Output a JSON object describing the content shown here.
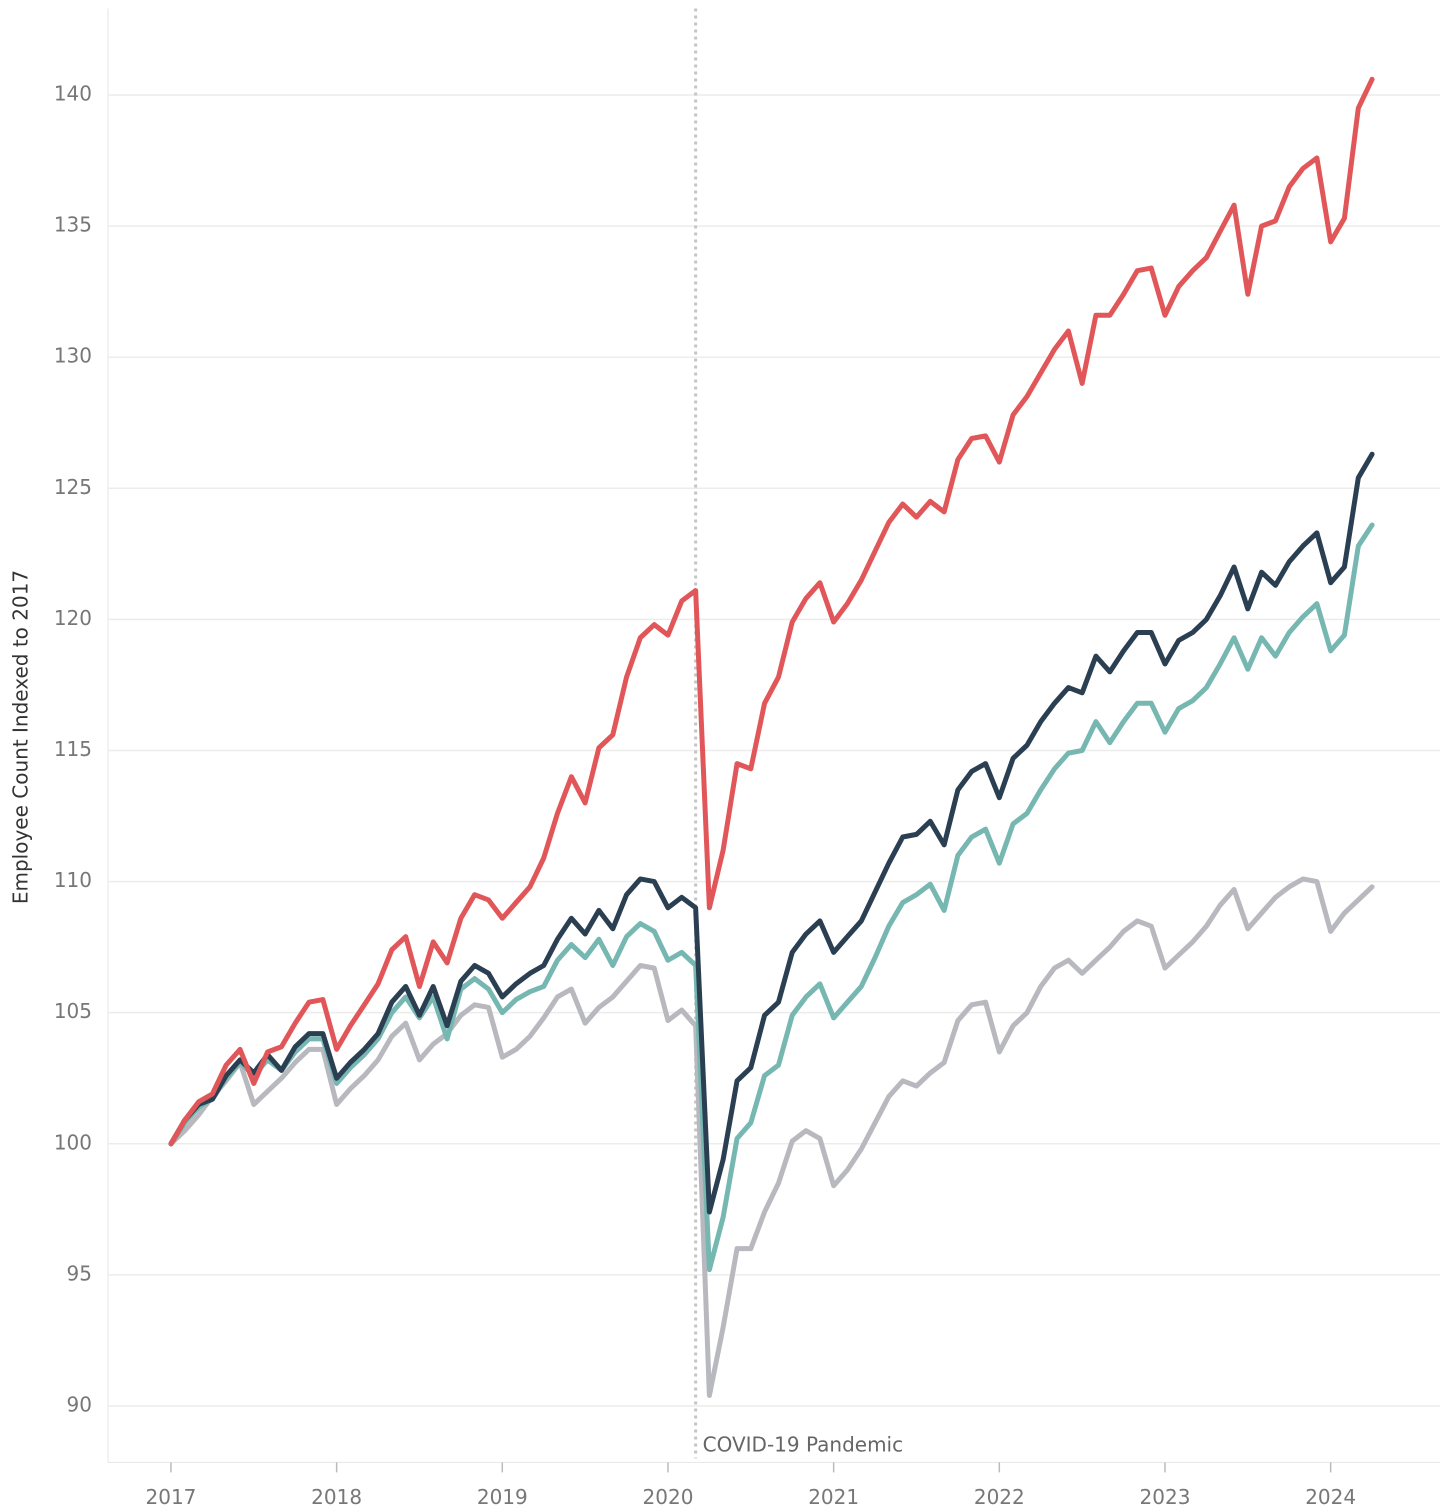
{
  "chart_data": {
    "type": "line",
    "ylabel": "Employee Count Indexed to 2017",
    "annotation": {
      "text": "COVID-19 Pandemic",
      "x": 2020.167
    },
    "xlim": [
      2016.62,
      2024.66
    ],
    "xticks": [
      2017,
      2018,
      2019,
      2020,
      2021,
      2022,
      2023,
      2024
    ],
    "ylim": [
      88,
      143.3
    ],
    "yticks": [
      90,
      95,
      100,
      105,
      110,
      115,
      120,
      125,
      130,
      135,
      140
    ],
    "grid": true,
    "x": [
      2017,
      2017.083,
      2017.167,
      2017.25,
      2017.333,
      2017.417,
      2017.5,
      2017.583,
      2017.667,
      2017.75,
      2017.833,
      2017.917,
      2018,
      2018.083,
      2018.167,
      2018.25,
      2018.333,
      2018.417,
      2018.5,
      2018.583,
      2018.667,
      2018.75,
      2018.833,
      2018.917,
      2019,
      2019.083,
      2019.167,
      2019.25,
      2019.333,
      2019.417,
      2019.5,
      2019.583,
      2019.667,
      2019.75,
      2019.833,
      2019.917,
      2020,
      2020.083,
      2020.167,
      2020.25,
      2020.333,
      2020.417,
      2020.5,
      2020.583,
      2020.667,
      2020.75,
      2020.833,
      2020.917,
      2021,
      2021.083,
      2021.167,
      2021.25,
      2021.333,
      2021.417,
      2021.5,
      2021.583,
      2021.667,
      2021.75,
      2021.833,
      2021.917,
      2022,
      2022.083,
      2022.167,
      2022.25,
      2022.333,
      2022.417,
      2022.5,
      2022.583,
      2022.667,
      2022.75,
      2022.833,
      2022.917,
      2023,
      2023.083,
      2023.167,
      2023.25,
      2023.333,
      2023.417,
      2023.5,
      2023.583,
      2023.667,
      2023.75,
      2023.833,
      2023.917,
      2024,
      2024.083,
      2024.167,
      2024.25
    ],
    "series": [
      {
        "color": "#b8b8bf",
        "values": [
          100,
          100.5,
          101.1,
          101.8,
          102.4,
          103.1,
          101.5,
          102.0,
          102.5,
          103.1,
          103.6,
          103.6,
          101.5,
          102.1,
          102.6,
          103.2,
          104.1,
          104.6,
          103.2,
          103.8,
          104.2,
          104.9,
          105.3,
          105.2,
          103.3,
          103.6,
          104.1,
          104.8,
          105.6,
          105.9,
          104.6,
          105.2,
          105.6,
          106.2,
          106.8,
          106.7,
          104.7,
          105.1,
          104.5,
          90.4,
          93.0,
          96.0,
          96.0,
          97.4,
          98.5,
          100.1,
          100.5,
          100.2,
          98.4,
          99.0,
          99.8,
          100.8,
          101.8,
          102.4,
          102.2,
          102.7,
          103.1,
          104.7,
          105.3,
          105.4,
          103.5,
          104.5,
          105.0,
          106.0,
          106.7,
          107.0,
          106.5,
          107.0,
          107.5,
          108.1,
          108.5,
          108.3,
          106.7,
          107.2,
          107.7,
          108.3,
          109.1,
          109.7,
          108.2,
          108.8,
          109.4,
          109.8,
          110.1,
          110.0,
          108.1,
          108.8,
          109.3,
          109.8
        ]
      },
      {
        "color": "#76b7b2",
        "values": [
          100,
          100.8,
          101.4,
          101.7,
          102.5,
          103.1,
          102.6,
          103.2,
          102.8,
          103.5,
          104.0,
          104.0,
          102.3,
          102.9,
          103.4,
          104.0,
          105.0,
          105.6,
          104.8,
          105.6,
          104.0,
          105.9,
          106.3,
          105.9,
          105.0,
          105.5,
          105.8,
          106.0,
          107.0,
          107.6,
          107.1,
          107.8,
          106.8,
          107.9,
          108.4,
          108.1,
          107.0,
          107.3,
          106.8,
          95.2,
          97.2,
          100.2,
          100.8,
          102.6,
          103.0,
          104.9,
          105.6,
          106.1,
          104.8,
          105.4,
          106.0,
          107.1,
          108.3,
          109.2,
          109.5,
          109.9,
          108.9,
          111.0,
          111.7,
          112.0,
          110.7,
          112.2,
          112.6,
          113.5,
          114.3,
          114.9,
          115.0,
          116.1,
          115.3,
          116.1,
          116.8,
          116.8,
          115.7,
          116.6,
          116.9,
          117.4,
          118.3,
          119.3,
          118.1,
          119.3,
          118.6,
          119.5,
          120.1,
          120.6,
          118.8,
          119.4,
          122.8,
          123.6
        ]
      },
      {
        "color": "#2b3f52",
        "values": [
          100,
          100.9,
          101.5,
          101.7,
          102.6,
          103.2,
          102.7,
          103.4,
          102.8,
          103.7,
          104.2,
          104.2,
          102.5,
          103.1,
          103.6,
          104.2,
          105.4,
          106.0,
          104.9,
          106.0,
          104.5,
          106.2,
          106.8,
          106.5,
          105.6,
          106.1,
          106.5,
          106.8,
          107.8,
          108.6,
          108.0,
          108.9,
          108.2,
          109.5,
          110.1,
          110.0,
          109.0,
          109.4,
          109.0,
          97.4,
          99.4,
          102.4,
          102.9,
          104.9,
          105.4,
          107.3,
          108.0,
          108.5,
          107.3,
          107.9,
          108.5,
          109.6,
          110.7,
          111.7,
          111.8,
          112.3,
          111.4,
          113.5,
          114.2,
          114.5,
          113.2,
          114.7,
          115.2,
          116.1,
          116.8,
          117.4,
          117.2,
          118.6,
          118.0,
          118.8,
          119.5,
          119.5,
          118.3,
          119.2,
          119.5,
          120.0,
          120.9,
          122.0,
          120.4,
          121.8,
          121.3,
          122.2,
          122.8,
          123.3,
          121.4,
          122.0,
          125.4,
          126.3
        ]
      },
      {
        "color": "#e15759",
        "values": [
          100,
          100.9,
          101.6,
          101.9,
          103.0,
          103.6,
          102.3,
          103.5,
          103.7,
          104.6,
          105.4,
          105.5,
          103.6,
          104.5,
          105.3,
          106.1,
          107.4,
          107.9,
          106.0,
          107.7,
          106.9,
          108.6,
          109.5,
          109.3,
          108.6,
          109.2,
          109.8,
          110.9,
          112.6,
          114.0,
          113.0,
          115.1,
          115.6,
          117.8,
          119.3,
          119.8,
          119.4,
          120.7,
          121.1,
          109.0,
          111.2,
          114.5,
          114.3,
          116.8,
          117.8,
          119.9,
          120.8,
          121.4,
          119.9,
          120.6,
          121.5,
          122.6,
          123.7,
          124.4,
          123.9,
          124.5,
          124.1,
          126.1,
          126.9,
          127.0,
          126.0,
          127.8,
          128.5,
          129.4,
          130.3,
          131.0,
          129.0,
          131.6,
          131.6,
          132.4,
          133.3,
          133.4,
          131.6,
          132.7,
          133.3,
          133.8,
          134.8,
          135.8,
          132.4,
          135.0,
          135.2,
          136.5,
          137.2,
          137.6,
          134.4,
          135.3,
          139.5,
          140.6
        ]
      }
    ]
  }
}
